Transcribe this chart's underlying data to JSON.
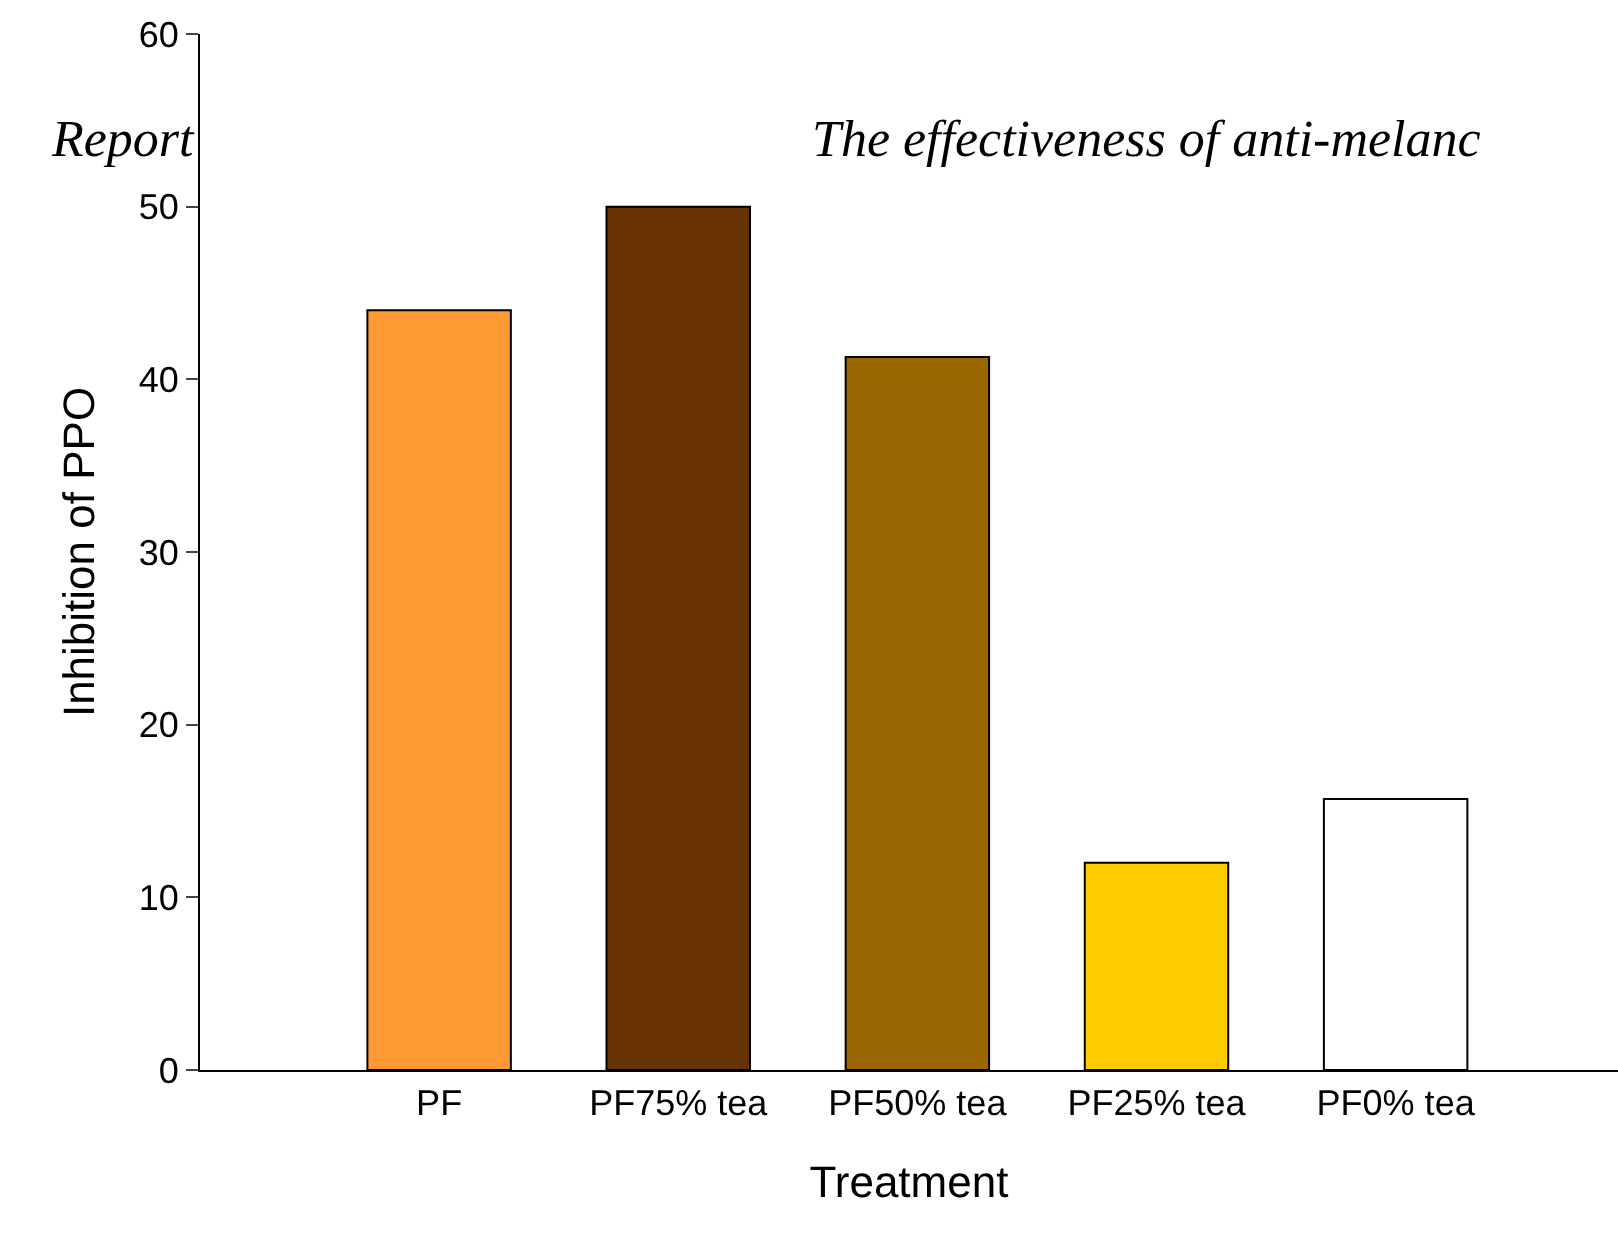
{
  "chart_data": {
    "type": "bar",
    "xlabel": "Treatment",
    "ylabel": "Inhibition of PPO",
    "categories": [
      "PF",
      "PF75% tea",
      "PF50% tea",
      "PF25% tea",
      "PF0% tea"
    ],
    "values": [
      44,
      50,
      41.3,
      12,
      15.7
    ],
    "colors": [
      "#ff9933",
      "#663300",
      "#996600",
      "#ffcc00",
      "#ffffff"
    ],
    "ylim": [
      0,
      60
    ],
    "yticks": [
      0,
      10,
      20,
      30,
      40,
      50,
      60
    ],
    "legend": false,
    "annotations": [
      "Report",
      "The effectiveness of anti-melanc"
    ]
  }
}
